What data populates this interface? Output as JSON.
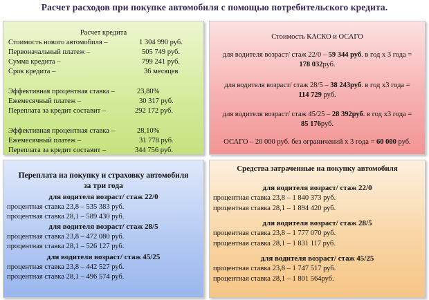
{
  "title": "Расчет расходов при покупке автомобиля с помощью потребительского кредита.",
  "credit": {
    "heading": "Расчет кредита",
    "rows": [
      {
        "label": "Стоимость нового автомобиля –",
        "value": "1 304 990 руб."
      },
      {
        "label": "Первоначальный платеж –",
        "value": "505 749 руб."
      },
      {
        "label": "Сумма кредита –",
        "value": "799 241 руб."
      },
      {
        "label": "Срок кредита –",
        "value": "36 месяцев"
      }
    ],
    "scenario1": [
      {
        "label": "Эффективная процентная ставка –",
        "value": "23,80%"
      },
      {
        "label": "Ежемесячный платеж –",
        "value": "30 317 руб."
      },
      {
        "label": "Переплата за кредит составит –",
        "value": "292 172 руб."
      }
    ],
    "scenario2": [
      {
        "label": "Эффективная процентная ставка –",
        "value": "28,10%"
      },
      {
        "label": "Ежемесячный платеж –",
        "value": "31 778 руб."
      },
      {
        "label": "Переплата за кредит составит –",
        "value": "344 756 руб."
      }
    ]
  },
  "insurance": {
    "heading": "Стоимость КАСКО и ОСАГО",
    "items": [
      {
        "pre": "для водителя возраст/ стаж 22/0 – ",
        "amount": "59 344 руб",
        "mid": ". в год х 3 года =",
        "total": "178 032",
        "post": "руб."
      },
      {
        "pre": "для водителя возраст/ стаж 28/5 – ",
        "amount": "38 243руб",
        "mid": ". в год х3 года =",
        "total": "114 729",
        "post": " руб."
      },
      {
        "pre": "для водителя возраст/ стаж 45/25 – ",
        "amount": "28 392руб",
        "mid": ". в год х3 года =",
        "total": "85 176",
        "post": "руб."
      }
    ],
    "osago": {
      "pre": "ОСАГО – 20 000 руб. без ограничений х 3 года = ",
      "total": "60 000",
      "post": " руб."
    }
  },
  "overpay": {
    "heading1": "Переплата на покупку и страховку автомобиля",
    "heading2": "за три года",
    "groups": [
      {
        "title": "для водителя возраст/ стаж 22/0",
        "lines": [
          "процентная ставка 23,8 – 535 383 руб.",
          "процентная ставка 28,1 – 589 430 руб."
        ]
      },
      {
        "title": "для водителя возраст/ стаж 28/5",
        "lines": [
          "процентная ставка 23,8 – 472 080 руб.",
          "процентная ставка 28,1 – 526 127 руб."
        ]
      },
      {
        "title": "для водителя возраст/ стаж 45/25",
        "lines": [
          "процентная ставка 23,8 – 442 527 руб.",
          "процентная ставка 28,1 – 496 574 руб."
        ]
      }
    ]
  },
  "spent": {
    "heading": "Средства затраченные на покупку автомобиля",
    "groups": [
      {
        "title": "для водителя возраст/ стаж 22/0",
        "lines": [
          "процентная ставка 23,8 – 1 840 373 руб.",
          "процентная ставка 28,1 – 1 894 420 руб."
        ]
      },
      {
        "title": "для водителя возраст/ стаж 28/5",
        "lines": [
          "процентная ставка 23,8 – 1 777 070 руб.",
          "процентная ставка 28,1 – 1 831 117 руб."
        ]
      },
      {
        "title": "для водителя возраст/ стаж 45/25",
        "lines": [
          "процентная ставка 23,8 – 1 747 517 руб.",
          "процентная ставка 28,1 – 1 801 564руб."
        ]
      }
    ]
  }
}
